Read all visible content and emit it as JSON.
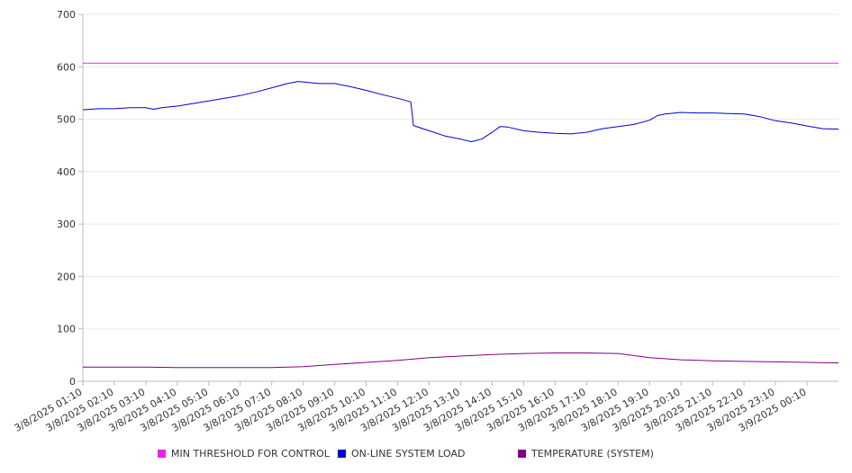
{
  "colors": {
    "threshold": "#ee22ee",
    "load": "#0000cc",
    "temperature": "#800080",
    "grid": "#e8e8e8",
    "axis": "#bbbbbb"
  },
  "chart_data": {
    "type": "line",
    "ylim": [
      0,
      700
    ],
    "yticks": [
      0,
      100,
      200,
      300,
      400,
      500,
      600,
      700
    ],
    "x_start": "3/8/2025 01:10",
    "x_end": "3/9/2025 01:10",
    "xtick_labels": [
      "3/8/2025 01:10",
      "3/8/2025 02:10",
      "3/8/2025 03:10",
      "3/8/2025 04:10",
      "3/8/2025 05:10",
      "3/8/2025 06:10",
      "3/8/2025 07:10",
      "3/8/2025 08:10",
      "3/8/2025 09:10",
      "3/8/2025 10:10",
      "3/8/2025 11:10",
      "3/8/2025 12:10",
      "3/8/2025 13:10",
      "3/8/2025 14:10",
      "3/8/2025 15:10",
      "3/8/2025 16:10",
      "3/8/2025 17:10",
      "3/8/2025 18:10",
      "3/8/2025 19:10",
      "3/8/2025 20:10",
      "3/8/2025 21:10",
      "3/8/2025 22:10",
      "3/8/2025 23:10",
      "3/9/2025 00:10"
    ],
    "grid": true,
    "legend_position": "bottom",
    "series": [
      {
        "name": "MIN THRESHOLD FOR CONTROL",
        "color_key": "threshold",
        "points": [
          [
            "3/8/2025 01:10",
            607
          ],
          [
            "3/9/2025 01:10",
            607
          ]
        ]
      },
      {
        "name": "ON-LINE SYSTEM LOAD",
        "color_key": "load",
        "points": [
          [
            "3/8/2025 01:10",
            518
          ],
          [
            "3/8/2025 01:40",
            520
          ],
          [
            "3/8/2025 02:10",
            520
          ],
          [
            "3/8/2025 02:40",
            522
          ],
          [
            "3/8/2025 03:10",
            522
          ],
          [
            "3/8/2025 03:25",
            519
          ],
          [
            "3/8/2025 03:40",
            522
          ],
          [
            "3/8/2025 04:10",
            525
          ],
          [
            "3/8/2025 04:40",
            530
          ],
          [
            "3/8/2025 05:10",
            535
          ],
          [
            "3/8/2025 05:40",
            540
          ],
          [
            "3/8/2025 06:10",
            545
          ],
          [
            "3/8/2025 06:40",
            552
          ],
          [
            "3/8/2025 07:10",
            560
          ],
          [
            "3/8/2025 07:40",
            568
          ],
          [
            "3/8/2025 08:00",
            572
          ],
          [
            "3/8/2025 08:40",
            568
          ],
          [
            "3/8/2025 09:10",
            568
          ],
          [
            "3/8/2025 09:40",
            562
          ],
          [
            "3/8/2025 10:10",
            555
          ],
          [
            "3/8/2025 10:40",
            547
          ],
          [
            "3/8/2025 11:10",
            540
          ],
          [
            "3/8/2025 11:35",
            533
          ],
          [
            "3/8/2025 11:40",
            488
          ],
          [
            "3/8/2025 12:10",
            478
          ],
          [
            "3/8/2025 12:40",
            468
          ],
          [
            "3/8/2025 13:10",
            462
          ],
          [
            "3/8/2025 13:30",
            457
          ],
          [
            "3/8/2025 13:50",
            462
          ],
          [
            "3/8/2025 14:10",
            475
          ],
          [
            "3/8/2025 14:25",
            486
          ],
          [
            "3/8/2025 14:40",
            485
          ],
          [
            "3/8/2025 15:10",
            478
          ],
          [
            "3/8/2025 15:40",
            475
          ],
          [
            "3/8/2025 16:10",
            473
          ],
          [
            "3/8/2025 16:40",
            472
          ],
          [
            "3/8/2025 17:10",
            475
          ],
          [
            "3/8/2025 17:40",
            482
          ],
          [
            "3/8/2025 18:10",
            486
          ],
          [
            "3/8/2025 18:40",
            490
          ],
          [
            "3/8/2025 19:10",
            498
          ],
          [
            "3/8/2025 19:25",
            507
          ],
          [
            "3/8/2025 19:40",
            510
          ],
          [
            "3/8/2025 20:10",
            513
          ],
          [
            "3/8/2025 20:40",
            512
          ],
          [
            "3/8/2025 21:10",
            512
          ],
          [
            "3/8/2025 21:40",
            511
          ],
          [
            "3/8/2025 22:10",
            510
          ],
          [
            "3/8/2025 22:40",
            505
          ],
          [
            "3/8/2025 23:10",
            497
          ],
          [
            "3/8/2025 23:40",
            493
          ],
          [
            "3/9/2025 00:10",
            487
          ],
          [
            "3/9/2025 00:40",
            482
          ],
          [
            "3/9/2025 01:10",
            481
          ]
        ]
      },
      {
        "name": "TEMPERATURE (SYSTEM)",
        "color_key": "temperature",
        "points": [
          [
            "3/8/2025 01:10",
            27
          ],
          [
            "3/8/2025 03:10",
            27
          ],
          [
            "3/8/2025 04:10",
            26
          ],
          [
            "3/8/2025 07:10",
            26
          ],
          [
            "3/8/2025 08:10",
            28
          ],
          [
            "3/8/2025 09:10",
            32
          ],
          [
            "3/8/2025 10:10",
            36
          ],
          [
            "3/8/2025 11:10",
            40
          ],
          [
            "3/8/2025 12:10",
            45
          ],
          [
            "3/8/2025 13:10",
            48
          ],
          [
            "3/8/2025 14:10",
            51
          ],
          [
            "3/8/2025 15:10",
            53
          ],
          [
            "3/8/2025 16:10",
            54
          ],
          [
            "3/8/2025 17:10",
            54
          ],
          [
            "3/8/2025 18:10",
            53
          ],
          [
            "3/8/2025 19:10",
            45
          ],
          [
            "3/8/2025 20:10",
            41
          ],
          [
            "3/8/2025 21:10",
            39
          ],
          [
            "3/8/2025 22:10",
            38
          ],
          [
            "3/8/2025 23:10",
            37
          ],
          [
            "3/9/2025 00:10",
            36
          ],
          [
            "3/9/2025 01:10",
            35
          ]
        ]
      }
    ]
  }
}
